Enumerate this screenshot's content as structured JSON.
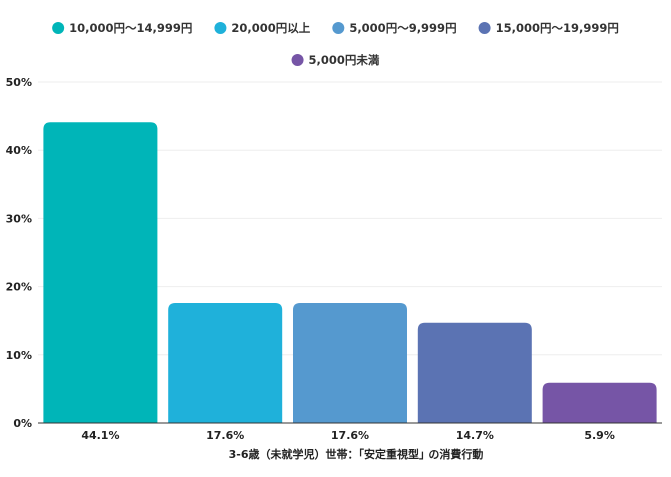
{
  "chart_data": {
    "type": "bar",
    "title": "",
    "xlabel": "3-6歳（未就学児）世帯：｢安定重視型｣ の消費行動",
    "ylabel": "",
    "ylim": [
      0,
      50
    ],
    "yticks": [
      0,
      10,
      20,
      30,
      40,
      50
    ],
    "ytick_suffix": "%",
    "grid": true,
    "legend_position": "top",
    "categories": [
      "44.1%",
      "17.6%",
      "17.6%",
      "14.7%",
      "5.9%"
    ],
    "series": [
      {
        "name": "10,000円～14,999円",
        "value": 44.1,
        "color": "#00B5B8"
      },
      {
        "name": "20,000円以上",
        "value": 17.6,
        "color": "#1FB1DA"
      },
      {
        "name": "5,000円～9,999円",
        "value": 17.6,
        "color": "#5599CF"
      },
      {
        "name": "15,000円～19,999円",
        "value": 14.7,
        "color": "#5B73B3"
      },
      {
        "name": "5,000円未満",
        "value": 5.9,
        "color": "#7655A6"
      }
    ]
  }
}
